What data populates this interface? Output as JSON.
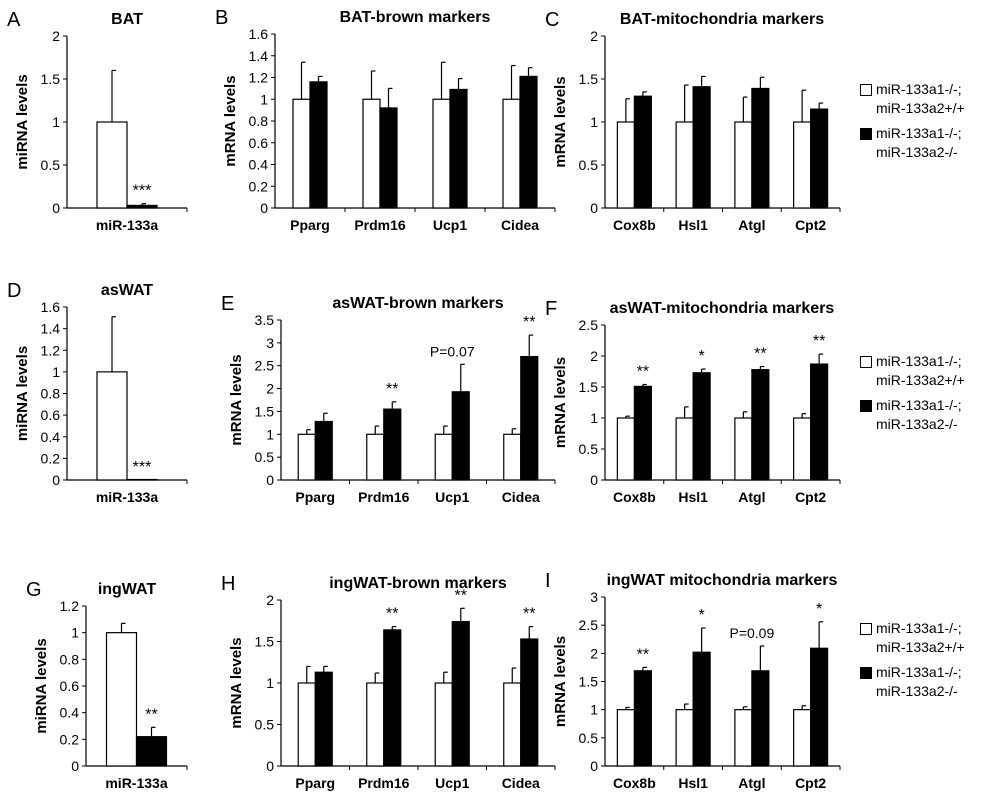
{
  "legend": {
    "entries": [
      {
        "label_line1": "miR-133a1-/-;",
        "label_line2": "miR-133a2+/+",
        "fill": "#ffffff"
      },
      {
        "label_line1": "miR-133a1-/-;",
        "label_line2": "miR-133a2-/-",
        "fill": "#000000"
      }
    ]
  },
  "chart_data": [
    {
      "panel": "A",
      "type": "bar",
      "title": "BAT",
      "ylabel": "miRNA levels",
      "xlabel": "",
      "ylim": [
        0,
        2
      ],
      "yticks": [
        0,
        0.5,
        1,
        1.5,
        2
      ],
      "ytick_labels": [
        "0",
        "0.5",
        "1",
        "1.5",
        "2"
      ],
      "categories": [
        "miR-133a"
      ],
      "series": [
        {
          "name": "miR-133a1-/-; miR-133a2+/+",
          "values": [
            1.0
          ],
          "errors": [
            0.6
          ],
          "fill": "#ffffff"
        },
        {
          "name": "miR-133a1-/-; miR-133a2-/-",
          "values": [
            0.03
          ],
          "errors": [
            0.02
          ],
          "fill": "#000000"
        }
      ],
      "annotations": [
        {
          "category": 0,
          "series": 1,
          "text": "***"
        }
      ]
    },
    {
      "panel": "B",
      "type": "bar",
      "title": "BAT-brown markers",
      "ylabel": "mRNA levels",
      "xlabel": "",
      "ylim": [
        0,
        1.6
      ],
      "yticks": [
        0,
        0.2,
        0.4,
        0.6,
        0.8,
        1,
        1.2,
        1.4,
        1.6
      ],
      "ytick_labels": [
        "0",
        "0.2",
        "0.4",
        "0.6",
        "0.8",
        "1",
        "1.2",
        "1.4",
        "1.6"
      ],
      "categories": [
        "Pparg",
        "Prdm16",
        "Ucp1",
        "Cidea"
      ],
      "series": [
        {
          "name": "miR-133a1-/-; miR-133a2+/+",
          "values": [
            1.0,
            1.0,
            1.0,
            1.0
          ],
          "errors": [
            0.34,
            0.26,
            0.34,
            0.31
          ],
          "fill": "#ffffff"
        },
        {
          "name": "miR-133a1-/-; miR-133a2-/-",
          "values": [
            1.16,
            0.92,
            1.09,
            1.21
          ],
          "errors": [
            0.05,
            0.18,
            0.1,
            0.08
          ],
          "fill": "#000000"
        }
      ],
      "annotations": []
    },
    {
      "panel": "C",
      "type": "bar",
      "title": "BAT-mitochondria markers",
      "ylabel": "mRNA levels",
      "xlabel": "",
      "ylim": [
        0,
        2
      ],
      "yticks": [
        0,
        0.5,
        1,
        1.5,
        2
      ],
      "ytick_labels": [
        "0",
        "0.5",
        "1",
        "1.5",
        "2"
      ],
      "categories": [
        "Cox8b",
        "Hsl1",
        "Atgl",
        "Cpt2"
      ],
      "series": [
        {
          "name": "miR-133a1-/-; miR-133a2+/+",
          "values": [
            1.0,
            1.0,
            1.0,
            1.0
          ],
          "errors": [
            0.27,
            0.43,
            0.29,
            0.37
          ],
          "fill": "#ffffff"
        },
        {
          "name": "miR-133a1-/-; miR-133a2-/-",
          "values": [
            1.3,
            1.41,
            1.39,
            1.15
          ],
          "errors": [
            0.05,
            0.12,
            0.13,
            0.07
          ],
          "fill": "#000000"
        }
      ],
      "annotations": []
    },
    {
      "panel": "D",
      "type": "bar",
      "title": "asWAT",
      "ylabel": "miRNA levels",
      "xlabel": "",
      "ylim": [
        0,
        1.6
      ],
      "yticks": [
        0,
        0.2,
        0.4,
        0.6,
        0.8,
        1,
        1.2,
        1.4,
        1.6
      ],
      "ytick_labels": [
        "0",
        "0.2",
        "0.4",
        "0.6",
        "0.8",
        "1",
        "1.2",
        "1.4",
        "1.6"
      ],
      "categories": [
        "miR-133a"
      ],
      "series": [
        {
          "name": "miR-133a1-/-; miR-133a2+/+",
          "values": [
            1.0
          ],
          "errors": [
            0.51
          ],
          "fill": "#ffffff"
        },
        {
          "name": "miR-133a1-/-; miR-133a2-/-",
          "values": [
            0.0
          ],
          "errors": [
            0
          ],
          "fill": "#000000"
        }
      ],
      "annotations": [
        {
          "category": 0,
          "series": 1,
          "text": "***"
        }
      ]
    },
    {
      "panel": "E",
      "type": "bar",
      "title": "asWAT-brown markers",
      "ylabel": "mRNA levels",
      "xlabel": "",
      "ylim": [
        0,
        3.5
      ],
      "yticks": [
        0,
        0.5,
        1,
        1.5,
        2,
        2.5,
        3,
        3.5
      ],
      "ytick_labels": [
        "0",
        "0.5",
        "1",
        "1.5",
        "2",
        "2.5",
        "3",
        "3.5"
      ],
      "categories": [
        "Pparg",
        "Prdm16",
        "Ucp1",
        "Cidea"
      ],
      "series": [
        {
          "name": "miR-133a1-/-; miR-133a2+/+",
          "values": [
            1.0,
            1.0,
            1.0,
            1.0
          ],
          "errors": [
            0.1,
            0.18,
            0.18,
            0.12
          ],
          "fill": "#ffffff"
        },
        {
          "name": "miR-133a1-/-; miR-133a2-/-",
          "values": [
            1.28,
            1.55,
            1.93,
            2.7
          ],
          "errors": [
            0.18,
            0.16,
            0.6,
            0.47
          ],
          "fill": "#000000"
        }
      ],
      "annotations": [
        {
          "category": 1,
          "series": 1,
          "text": "**"
        },
        {
          "category": 2,
          "series": 1,
          "text": "P=0.07"
        },
        {
          "category": 3,
          "series": 1,
          "text": "**"
        }
      ]
    },
    {
      "panel": "F",
      "type": "bar",
      "title": "asWAT-mitochondria markers",
      "ylabel": "mRNA levels",
      "xlabel": "",
      "ylim": [
        0,
        2.5
      ],
      "yticks": [
        0,
        0.5,
        1,
        1.5,
        2,
        2.5
      ],
      "ytick_labels": [
        "0",
        "0.5",
        "1",
        "1.5",
        "2",
        "2.5"
      ],
      "categories": [
        "Cox8b",
        "Hsl1",
        "Atgl",
        "Cpt2"
      ],
      "series": [
        {
          "name": "miR-133a1-/-; miR-133a2+/+",
          "values": [
            1.0,
            1.0,
            1.0,
            1.0
          ],
          "errors": [
            0.03,
            0.18,
            0.1,
            0.07
          ],
          "fill": "#ffffff"
        },
        {
          "name": "miR-133a1-/-; miR-133a2-/-",
          "values": [
            1.51,
            1.73,
            1.78,
            1.87
          ],
          "errors": [
            0.03,
            0.06,
            0.05,
            0.16
          ],
          "fill": "#000000"
        }
      ],
      "annotations": [
        {
          "category": 0,
          "series": 1,
          "text": "**"
        },
        {
          "category": 1,
          "series": 1,
          "text": "*"
        },
        {
          "category": 2,
          "series": 1,
          "text": "**"
        },
        {
          "category": 3,
          "series": 1,
          "text": "**"
        }
      ]
    },
    {
      "panel": "G",
      "type": "bar",
      "title": "ingWAT",
      "ylabel": "miRNA levels",
      "xlabel": "",
      "ylim": [
        0,
        1.2
      ],
      "yticks": [
        0,
        0.2,
        0.4,
        0.6,
        0.8,
        1,
        1.2
      ],
      "ytick_labels": [
        "0",
        "0.2",
        "0.4",
        "0.6",
        "0.8",
        "1",
        "1.2"
      ],
      "categories": [
        "miR-133a"
      ],
      "series": [
        {
          "name": "miR-133a1-/-; miR-133a2+/+",
          "values": [
            1.0
          ],
          "errors": [
            0.07
          ],
          "fill": "#ffffff"
        },
        {
          "name": "miR-133a1-/-; miR-133a2-/-",
          "values": [
            0.22
          ],
          "errors": [
            0.07
          ],
          "fill": "#000000"
        }
      ],
      "annotations": [
        {
          "category": 0,
          "series": 1,
          "text": "**"
        }
      ]
    },
    {
      "panel": "H",
      "type": "bar",
      "title": "ingWAT-brown markers",
      "ylabel": "mRNA levels",
      "xlabel": "",
      "ylim": [
        0,
        2
      ],
      "yticks": [
        0,
        0.5,
        1,
        1.5,
        2
      ],
      "ytick_labels": [
        "0",
        "0.5",
        "1",
        "1.5",
        "2"
      ],
      "categories": [
        "Pparg",
        "Prdm16",
        "Ucp1",
        "Cidea"
      ],
      "series": [
        {
          "name": "miR-133a1-/-; miR-133a2+/+",
          "values": [
            1.0,
            1.0,
            1.0,
            1.0
          ],
          "errors": [
            0.2,
            0.12,
            0.13,
            0.18
          ],
          "fill": "#ffffff"
        },
        {
          "name": "miR-133a1-/-; miR-133a2-/-",
          "values": [
            1.13,
            1.64,
            1.74,
            1.53
          ],
          "errors": [
            0.07,
            0.04,
            0.16,
            0.15
          ],
          "fill": "#000000"
        }
      ],
      "annotations": [
        {
          "category": 1,
          "series": 1,
          "text": "**"
        },
        {
          "category": 2,
          "series": 1,
          "text": "**"
        },
        {
          "category": 3,
          "series": 1,
          "text": "**"
        }
      ]
    },
    {
      "panel": "I",
      "type": "bar",
      "title": "ingWAT mitochondria markers",
      "ylabel": "mRNA levels",
      "xlabel": "",
      "ylim": [
        0,
        3
      ],
      "yticks": [
        0,
        0.5,
        1,
        1.5,
        2,
        2.5,
        3
      ],
      "ytick_labels": [
        "0",
        "0.5",
        "1",
        "1.5",
        "2",
        "2.5",
        "3"
      ],
      "categories": [
        "Cox8b",
        "Hsl1",
        "Atgl",
        "Cpt2"
      ],
      "series": [
        {
          "name": "miR-133a1-/-; miR-133a2+/+",
          "values": [
            1.0,
            1.0,
            1.0,
            1.0
          ],
          "errors": [
            0.04,
            0.1,
            0.05,
            0.07
          ],
          "fill": "#ffffff"
        },
        {
          "name": "miR-133a1-/-; miR-133a2-/-",
          "values": [
            1.69,
            2.02,
            1.69,
            2.09
          ],
          "errors": [
            0.06,
            0.43,
            0.44,
            0.47
          ],
          "fill": "#000000"
        }
      ],
      "annotations": [
        {
          "category": 0,
          "series": 1,
          "text": "**"
        },
        {
          "category": 1,
          "series": 1,
          "text": "*"
        },
        {
          "category": 2,
          "series": 1,
          "text": "P=0.09"
        },
        {
          "category": 3,
          "series": 1,
          "text": "*"
        }
      ]
    }
  ]
}
